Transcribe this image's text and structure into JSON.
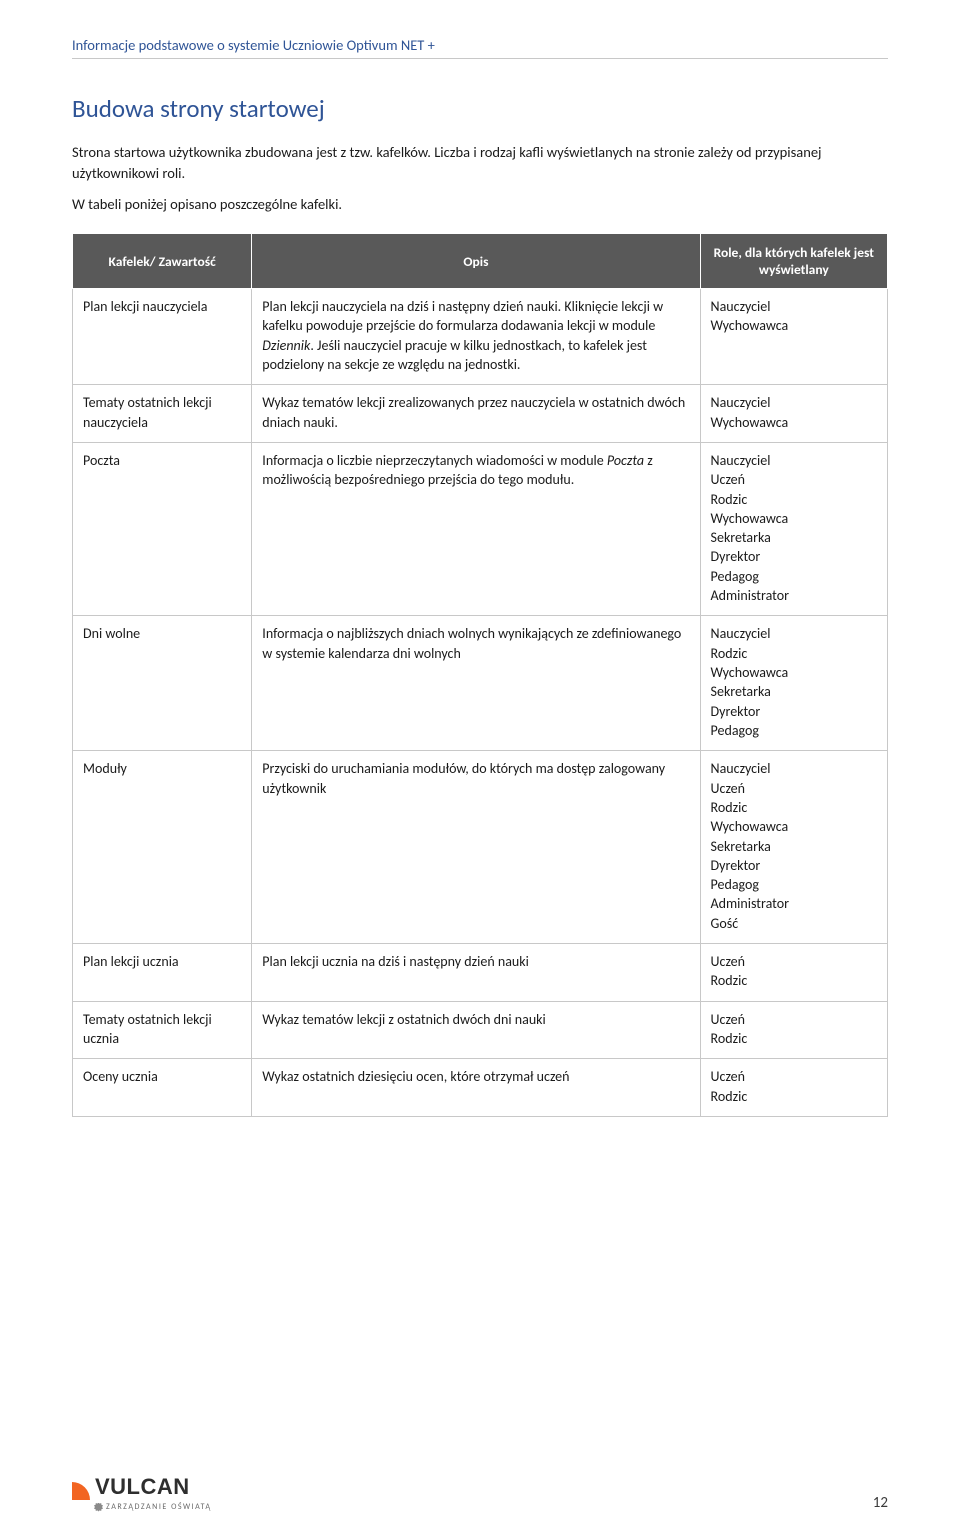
{
  "header": "Informacje podstawowe o systemie Uczniowie Optivum NET +",
  "heading": "Budowa strony startowej",
  "p1": "Strona startowa użytkownika zbudowana jest z tzw. kafelków. Liczba i rodzaj kafli wyświetlanych na  stronie zależy od przypisanej użytkownikowi roli.",
  "p2": "W tabeli poniżej opisano poszczególne kafelki.",
  "table": {
    "columns": [
      "Kafelek/ Zawartość",
      "Opis",
      "Role, dla których kafelek jest wyświetlany"
    ],
    "rows": [
      {
        "c1": "Plan lekcji nauczyciela",
        "c2_pre": "Plan lekcji nauczyciela na dziś i następny dzień nauki. Kliknięcie lekcji w kafelku powoduje przejście do formularza dodawania lekcji w module ",
        "c2_italic": "Dziennik",
        "c2_post": ". Jeśli nauczyciel pracuje w kilku jednostkach, to kafelek jest podzielony na sekcje ze względu na jednostki.",
        "roles": [
          "Nauczyciel",
          "Wychowawca"
        ]
      },
      {
        "c1": "Tematy ostatnich lekcji nauczyciela",
        "c2_pre": "Wykaz tematów lekcji zrealizowanych przez nauczyciela w ostatnich dwóch dniach nauki.",
        "c2_italic": "",
        "c2_post": "",
        "roles": [
          "Nauczyciel",
          "Wychowawca"
        ]
      },
      {
        "c1": "Poczta",
        "c2_pre": "Informacja o liczbie nieprzeczytanych wiadomości w module ",
        "c2_italic": "Poczta",
        "c2_post": " z możliwością bezpośredniego przejścia do tego modułu.",
        "roles": [
          "Nauczyciel",
          "Uczeń",
          "Rodzic",
          "Wychowawca",
          "Sekretarka",
          "Dyrektor",
          "Pedagog",
          "Administrator"
        ]
      },
      {
        "c1": "Dni wolne",
        "c2_pre": "Informacja o najbliższych dniach wolnych wynikających ze zdefiniowanego w systemie kalendarza dni wolnych",
        "c2_italic": "",
        "c2_post": "",
        "roles": [
          "Nauczyciel",
          "Rodzic",
          "Wychowawca",
          "Sekretarka",
          "Dyrektor",
          "Pedagog"
        ]
      },
      {
        "c1": "Moduły",
        "c2_pre": "Przyciski do uruchamiania modułów, do których ma dostęp zalogowany użytkownik",
        "c2_italic": "",
        "c2_post": "",
        "roles": [
          "Nauczyciel",
          "Uczeń",
          "Rodzic",
          "Wychowawca",
          "Sekretarka",
          "Dyrektor",
          "Pedagog",
          "Administrator",
          "Gość"
        ]
      },
      {
        "c1": "Plan lekcji ucznia",
        "c2_pre": "Plan lekcji ucznia na dziś i następny dzień nauki",
        "c2_italic": "",
        "c2_post": "",
        "roles": [
          "Uczeń",
          "Rodzic"
        ]
      },
      {
        "c1": "Tematy ostatnich lekcji ucznia",
        "c2_pre": "Wykaz tematów lekcji z ostatnich dwóch dni nauki",
        "c2_italic": "",
        "c2_post": "",
        "roles": [
          "Uczeń",
          "Rodzic"
        ]
      },
      {
        "c1": "Oceny ucznia",
        "c2_pre": "Wykaz ostatnich dziesięciu ocen, które otrzymał uczeń",
        "c2_italic": "",
        "c2_post": "",
        "roles": [
          "Uczeń",
          "Rodzic"
        ]
      }
    ]
  },
  "footer": {
    "logo_main": "VULCAN",
    "logo_sub": "ZARZĄDZANIE OŚWIATĄ",
    "page": "12"
  }
}
